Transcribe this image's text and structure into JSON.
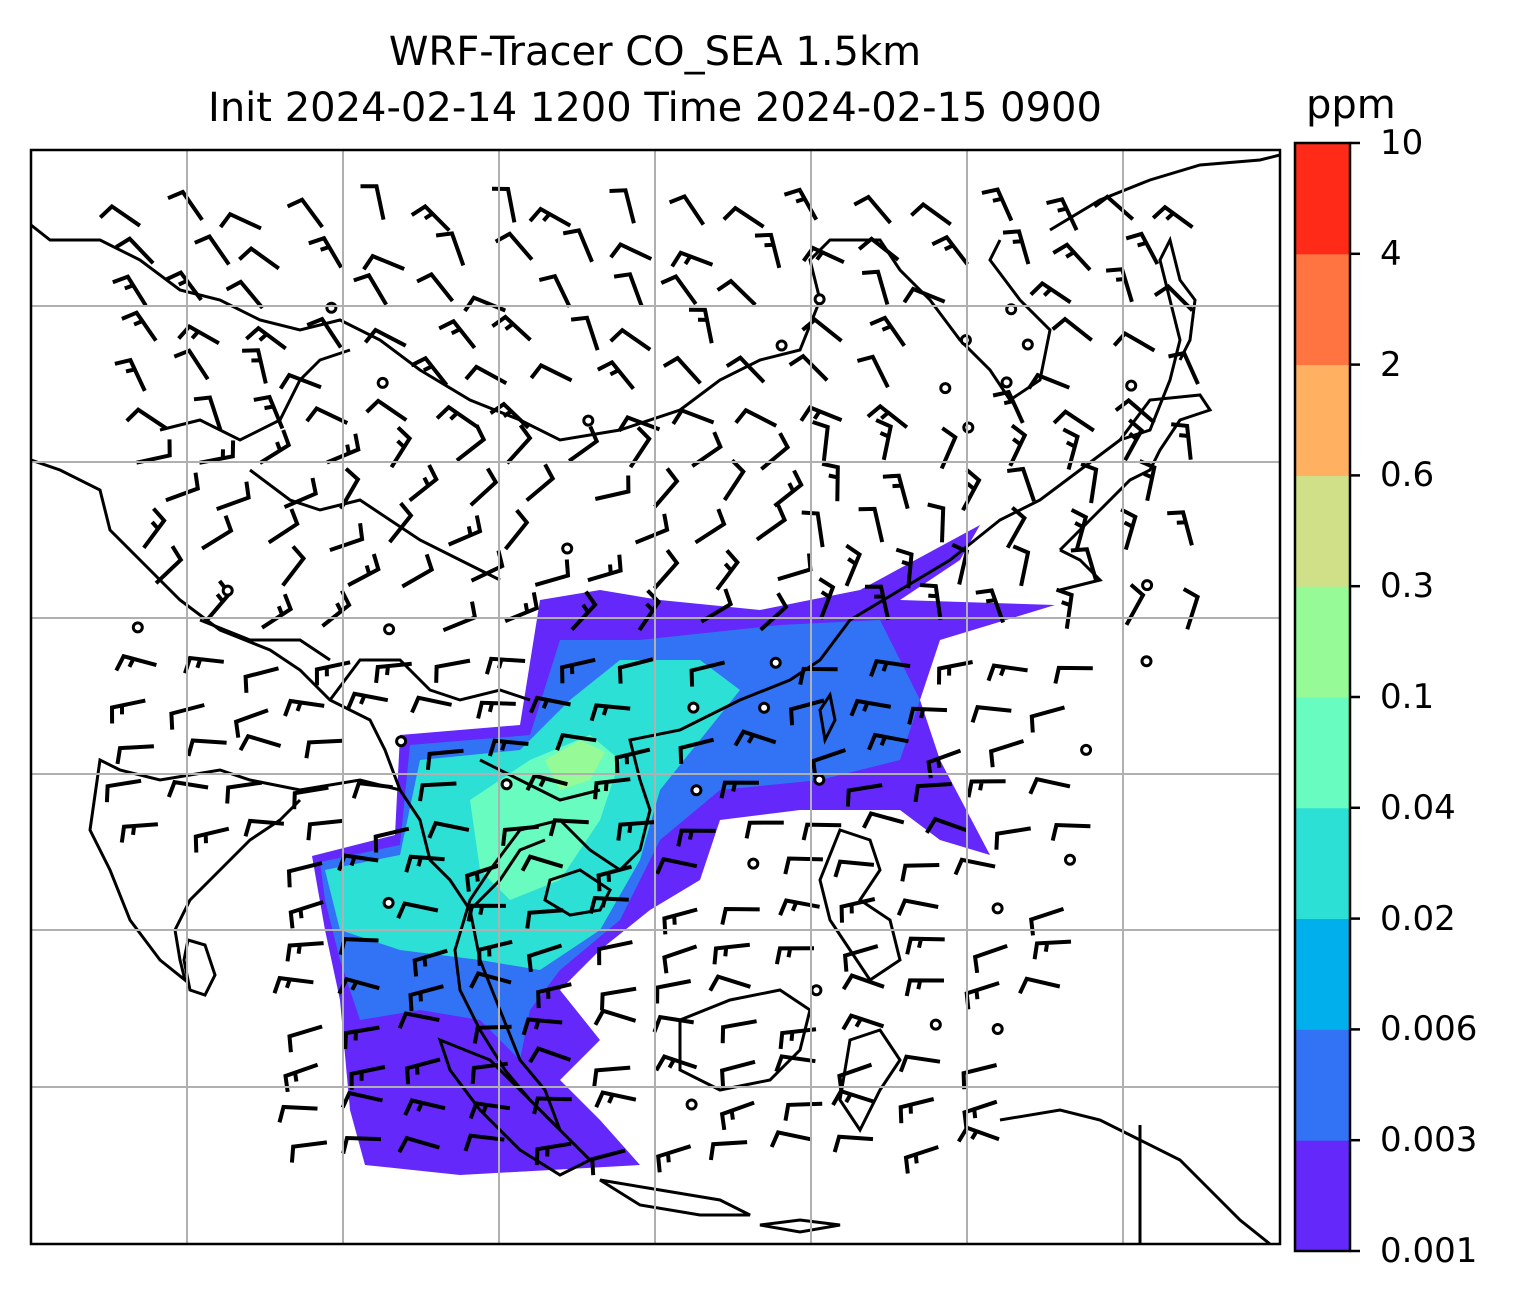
{
  "title": "WRF-Tracer CO_SEA 1.5km",
  "subtitle": "Init 2024-02-14 1200 Time 2024-02-15 0900",
  "colorbar": {
    "unit": "ppm",
    "levels": [
      "0.001",
      "0.003",
      "0.006",
      "0.02",
      "0.04",
      "0.1",
      "0.3",
      "0.6",
      "2",
      "4",
      "10"
    ],
    "colors": [
      "#6428fa",
      "#3273f5",
      "#00afeb",
      "#2de0d6",
      "#69fcc0",
      "#96fa96",
      "#d0e088",
      "#ffb060",
      "#ff7440",
      "#ff2a18"
    ]
  },
  "map": {
    "gridlines": true,
    "layers": [
      "coastlines",
      "wind-barbs",
      "tracer-concentration"
    ]
  }
}
